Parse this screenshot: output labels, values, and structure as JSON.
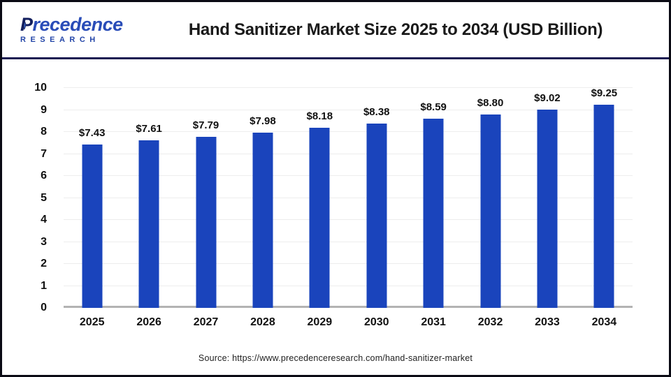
{
  "header": {
    "logo": {
      "word_initial": "P",
      "word_rest": "recedence",
      "subtitle": "RESEARCH"
    },
    "title": "Hand Sanitizer Market Size 2025 to 2034 (USD Billion)"
  },
  "chart_data": {
    "type": "bar",
    "title": "Hand Sanitizer Market Size 2025 to 2034 (USD Billion)",
    "categories": [
      "2025",
      "2026",
      "2027",
      "2028",
      "2029",
      "2030",
      "2031",
      "2032",
      "2033",
      "2034"
    ],
    "values": [
      7.43,
      7.61,
      7.79,
      7.98,
      8.18,
      8.38,
      8.59,
      8.8,
      9.02,
      9.25
    ],
    "data_labels": [
      "$7.43",
      "$7.61",
      "$7.79",
      "$7.98",
      "$8.18",
      "$8.38",
      "$8.59",
      "$8.80",
      "$9.02",
      "$9.25"
    ],
    "xlabel": "",
    "ylabel": "",
    "ylim": [
      0,
      10
    ],
    "yticks": [
      0,
      1,
      2,
      3,
      4,
      5,
      6,
      7,
      8,
      9,
      10
    ],
    "grid": "horizontal",
    "legend": "none",
    "unit": "USD Billion"
  },
  "footer": {
    "source": "Source: https://www.precedenceresearch.com/hand-sanitizer-market"
  },
  "colors": {
    "bar": "#1a44bc",
    "separator": "#1a1a52",
    "grid": "#ededed",
    "axis_line": "#b3b3b3",
    "logo_primary": "#2a4db8",
    "logo_dark": "#131f5e"
  }
}
